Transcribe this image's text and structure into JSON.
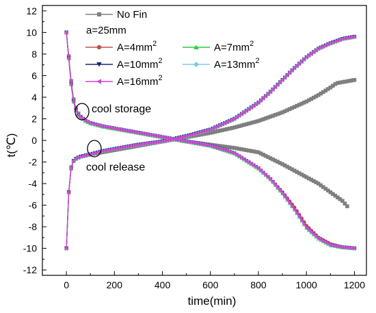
{
  "chart_data": {
    "type": "line",
    "xlabel": "time(min)",
    "ylabel": "t(℃)",
    "xlim": [
      -100,
      1250
    ],
    "ylim": [
      -12.5,
      12.5
    ],
    "x_ticks": [
      0,
      200,
      400,
      600,
      800,
      1000,
      1200
    ],
    "y_ticks": [
      -12,
      -10,
      -8,
      -6,
      -4,
      -2,
      0,
      2,
      4,
      6,
      8,
      10,
      12
    ],
    "x_tick_labels": [
      "0",
      "200",
      "400",
      "600",
      "800",
      "1000",
      "1200"
    ],
    "y_tick_labels": [
      "-12",
      "-10",
      "-8",
      "-6",
      "-4",
      "-2",
      "0",
      "2",
      "4",
      "6",
      "8",
      "10",
      "12"
    ],
    "legend": {
      "nofin": "No Fin",
      "subtitle": "a=25mm",
      "a4": "A=4mm",
      "a7": "A=7mm",
      "a10": "A=10mm",
      "a13": "A=13mm",
      "a16": "A=16mm",
      "sup": "2"
    },
    "annotations": {
      "storage": "cool storage",
      "release": "cool release"
    },
    "series": [
      {
        "name": "No Fin",
        "group": "storage",
        "color": "#7f7f7f",
        "marker": "square",
        "x": [
          0,
          10,
          20,
          30,
          40,
          50,
          60,
          70,
          80,
          100,
          150,
          200,
          300,
          400,
          500,
          600,
          700,
          800,
          900,
          1000,
          1050,
          1100,
          1150,
          1170
        ],
        "y": [
          10,
          7.8,
          5.5,
          3.8,
          3.0,
          2.5,
          2.2,
          2.0,
          1.8,
          1.6,
          1.3,
          1.1,
          0.7,
          0.3,
          -0.1,
          -0.4,
          -0.7,
          -1.1,
          -2.2,
          -3.4,
          -4.0,
          -4.8,
          -5.6,
          -6.1
        ]
      },
      {
        "name": "No Fin",
        "group": "release",
        "color": "#7f7f7f",
        "marker": "square",
        "x": [
          0,
          10,
          20,
          30,
          40,
          60,
          80,
          100,
          150,
          200,
          300,
          400,
          500,
          600,
          700,
          800,
          900,
          1000,
          1050,
          1100,
          1125,
          1150,
          1200
        ],
        "y": [
          -10,
          -4.8,
          -2.6,
          -1.9,
          -1.7,
          -1.5,
          -1.4,
          -1.3,
          -1.1,
          -0.9,
          -0.5,
          -0.1,
          0.3,
          0.7,
          1.2,
          1.8,
          2.6,
          3.6,
          4.2,
          4.9,
          5.3,
          5.4,
          5.6
        ]
      },
      {
        "name": "A=4mm2",
        "group": "storage",
        "color": "#c0504d",
        "marker": "circle",
        "x": [
          0,
          10,
          20,
          30,
          40,
          50,
          60,
          70,
          80,
          100,
          150,
          200,
          300,
          400,
          500,
          600,
          700,
          800,
          850,
          900,
          950,
          1000,
          1050,
          1100,
          1150,
          1200
        ],
        "y": [
          10,
          7.6,
          5.2,
          3.6,
          2.8,
          2.3,
          2.1,
          2.0,
          1.8,
          1.6,
          1.3,
          1.1,
          0.7,
          0.3,
          -0.1,
          -0.5,
          -1.2,
          -2.6,
          -3.6,
          -4.8,
          -6.2,
          -7.9,
          -9.0,
          -9.6,
          -9.9,
          -10.0
        ]
      },
      {
        "name": "A=4mm2",
        "group": "release",
        "color": "#c0504d",
        "marker": "circle",
        "x": [
          0,
          10,
          20,
          30,
          40,
          60,
          80,
          100,
          150,
          200,
          300,
          400,
          500,
          600,
          700,
          800,
          850,
          900,
          950,
          1000,
          1050,
          1100,
          1150,
          1200
        ],
        "y": [
          -10,
          -4.8,
          -2.5,
          -1.9,
          -1.7,
          -1.5,
          -1.4,
          -1.3,
          -1.0,
          -0.8,
          -0.4,
          -0.1,
          0.4,
          1.0,
          2.0,
          3.5,
          4.5,
          5.6,
          6.7,
          7.7,
          8.5,
          9.0,
          9.4,
          9.6
        ]
      },
      {
        "name": "A=7mm2",
        "group": "storage",
        "color": "#2ecc40",
        "marker": "triangle",
        "x": [
          0,
          10,
          20,
          30,
          40,
          50,
          60,
          70,
          80,
          100,
          150,
          200,
          300,
          400,
          500,
          600,
          700,
          800,
          850,
          900,
          950,
          1000,
          1050,
          1100,
          1150,
          1200
        ],
        "y": [
          10,
          7.6,
          5.2,
          3.6,
          2.8,
          2.3,
          2.1,
          2.0,
          1.8,
          1.6,
          1.3,
          1.1,
          0.7,
          0.3,
          -0.1,
          -0.5,
          -1.2,
          -2.6,
          -3.6,
          -4.9,
          -6.4,
          -8.1,
          -9.1,
          -9.7,
          -9.9,
          -10.0
        ]
      },
      {
        "name": "A=7mm2",
        "group": "release",
        "color": "#2ecc40",
        "marker": "triangle",
        "x": [
          0,
          10,
          20,
          30,
          40,
          60,
          80,
          100,
          150,
          200,
          300,
          400,
          500,
          600,
          700,
          800,
          850,
          900,
          950,
          1000,
          1050,
          1100,
          1150,
          1200
        ],
        "y": [
          -10,
          -4.8,
          -2.5,
          -1.9,
          -1.7,
          -1.5,
          -1.4,
          -1.3,
          -1.0,
          -0.8,
          -0.4,
          -0.1,
          0.4,
          1.0,
          2.0,
          3.5,
          4.5,
          5.6,
          6.7,
          7.7,
          8.5,
          9.0,
          9.4,
          9.6
        ]
      },
      {
        "name": "A=10mm2",
        "group": "storage",
        "color": "#1a237e",
        "marker": "triangle-down",
        "x": [
          0,
          10,
          20,
          30,
          40,
          50,
          60,
          70,
          80,
          100,
          150,
          200,
          300,
          400,
          500,
          600,
          700,
          800,
          850,
          900,
          950,
          1000,
          1050,
          1100,
          1150,
          1200
        ],
        "y": [
          10,
          7.6,
          5.2,
          3.6,
          2.8,
          2.3,
          2.1,
          2.0,
          1.8,
          1.6,
          1.3,
          1.1,
          0.7,
          0.3,
          -0.1,
          -0.5,
          -1.2,
          -2.6,
          -3.6,
          -4.9,
          -6.4,
          -8.1,
          -9.1,
          -9.7,
          -9.9,
          -10.0
        ]
      },
      {
        "name": "A=10mm2",
        "group": "release",
        "color": "#1a237e",
        "marker": "triangle-down",
        "x": [
          0,
          10,
          20,
          30,
          40,
          60,
          80,
          100,
          150,
          200,
          300,
          400,
          500,
          600,
          700,
          800,
          850,
          900,
          950,
          1000,
          1050,
          1100,
          1150,
          1200
        ],
        "y": [
          -10,
          -4.8,
          -2.5,
          -1.9,
          -1.7,
          -1.5,
          -1.4,
          -1.3,
          -1.0,
          -0.8,
          -0.4,
          -0.1,
          0.4,
          1.0,
          2.0,
          3.5,
          4.5,
          5.6,
          6.7,
          7.7,
          8.5,
          9.0,
          9.4,
          9.6
        ]
      },
      {
        "name": "A=13mm2",
        "group": "storage",
        "color": "#7ec8e3",
        "marker": "diamond",
        "x": [
          0,
          10,
          20,
          30,
          40,
          50,
          60,
          70,
          80,
          100,
          150,
          200,
          300,
          400,
          500,
          600,
          700,
          800,
          850,
          900,
          950,
          1000,
          1050,
          1100,
          1150,
          1200
        ],
        "y": [
          10,
          7.6,
          5.2,
          3.6,
          2.8,
          2.3,
          2.1,
          2.0,
          1.8,
          1.6,
          1.3,
          1.1,
          0.7,
          0.3,
          -0.1,
          -0.5,
          -1.2,
          -2.6,
          -3.6,
          -4.9,
          -6.4,
          -8.1,
          -9.1,
          -9.7,
          -9.9,
          -10.0
        ]
      },
      {
        "name": "A=13mm2",
        "group": "release",
        "color": "#7ec8e3",
        "marker": "diamond",
        "x": [
          0,
          10,
          20,
          30,
          40,
          60,
          80,
          100,
          150,
          200,
          300,
          400,
          500,
          600,
          700,
          800,
          850,
          900,
          950,
          1000,
          1050,
          1100,
          1150,
          1200
        ],
        "y": [
          -10,
          -4.8,
          -2.5,
          -1.9,
          -1.7,
          -1.5,
          -1.4,
          -1.3,
          -1.0,
          -0.8,
          -0.4,
          -0.1,
          0.4,
          1.0,
          2.0,
          3.5,
          4.5,
          5.6,
          6.7,
          7.7,
          8.5,
          9.0,
          9.4,
          9.6
        ]
      },
      {
        "name": "A=16mm2",
        "group": "storage",
        "color": "#cc44cc",
        "marker": "triangle-left",
        "x": [
          0,
          10,
          20,
          30,
          40,
          50,
          60,
          70,
          80,
          100,
          150,
          200,
          300,
          400,
          500,
          600,
          700,
          800,
          850,
          900,
          950,
          1000,
          1050,
          1100,
          1150,
          1200
        ],
        "y": [
          10,
          7.6,
          5.2,
          3.6,
          2.8,
          2.3,
          2.1,
          2.0,
          1.8,
          1.6,
          1.3,
          1.1,
          0.7,
          0.3,
          -0.1,
          -0.5,
          -1.2,
          -2.6,
          -3.6,
          -4.9,
          -6.4,
          -8.1,
          -9.1,
          -9.7,
          -9.9,
          -10.0
        ]
      },
      {
        "name": "A=16mm2",
        "group": "release",
        "color": "#cc44cc",
        "marker": "triangle-left",
        "x": [
          0,
          10,
          20,
          30,
          40,
          60,
          80,
          100,
          150,
          200,
          300,
          400,
          500,
          600,
          700,
          800,
          850,
          900,
          950,
          1000,
          1050,
          1100,
          1150,
          1200
        ],
        "y": [
          -10,
          -4.8,
          -2.5,
          -1.9,
          -1.7,
          -1.5,
          -1.4,
          -1.3,
          -1.0,
          -0.8,
          -0.4,
          -0.1,
          0.4,
          1.0,
          2.0,
          3.5,
          4.5,
          5.6,
          6.7,
          7.7,
          8.5,
          9.0,
          9.4,
          9.6
        ]
      }
    ]
  }
}
